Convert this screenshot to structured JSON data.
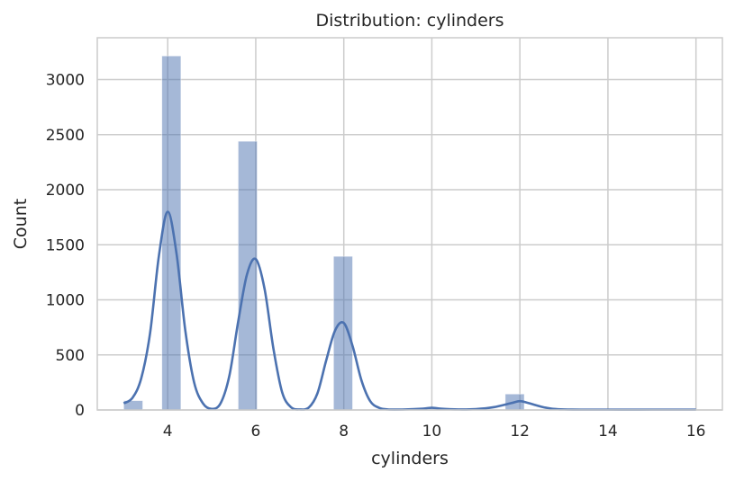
{
  "chart_data": {
    "type": "bar",
    "title": "Distribution: cylinders",
    "xlabel": "cylinders",
    "ylabel": "Count",
    "xlim": [
      2.4,
      16.6
    ],
    "ylim": [
      0,
      3380
    ],
    "x_ticks": [
      4,
      6,
      8,
      10,
      12,
      14,
      16
    ],
    "y_ticks": [
      0,
      500,
      1000,
      1500,
      2000,
      2500,
      3000
    ],
    "grid": true,
    "bar_color": "#4c72b0",
    "bar_alpha": 0.5,
    "kde_color": "#4c72b0",
    "histogram": {
      "bin_edges": [
        3.0,
        3.433,
        3.867,
        4.3,
        4.733,
        5.167,
        5.6,
        6.033,
        6.467,
        6.9,
        7.333,
        7.767,
        8.2,
        8.633,
        9.067,
        9.5,
        9.933,
        10.367,
        10.8,
        11.233,
        11.667,
        12.1,
        12.533,
        12.967,
        13.4,
        13.833,
        14.267,
        14.7,
        15.133,
        15.567,
        16.0
      ],
      "counts": [
        85,
        0,
        3215,
        0,
        0,
        0,
        2440,
        0,
        0,
        0,
        0,
        1395,
        0,
        0,
        0,
        0,
        10,
        0,
        0,
        0,
        145,
        0,
        0,
        0,
        0,
        0,
        0,
        0,
        0,
        2
      ]
    },
    "kde": {
      "x": [
        3.0,
        3.2,
        3.4,
        3.6,
        3.8,
        4.0,
        4.2,
        4.4,
        4.6,
        4.8,
        5.0,
        5.2,
        5.4,
        5.6,
        5.8,
        6.0,
        6.2,
        6.4,
        6.6,
        6.8,
        7.0,
        7.2,
        7.4,
        7.6,
        7.8,
        8.0,
        8.2,
        8.4,
        8.6,
        8.8,
        9.0,
        9.4,
        9.8,
        10.0,
        10.2,
        10.6,
        11.0,
        11.4,
        11.8,
        12.0,
        12.2,
        12.6,
        13.0,
        14.0,
        15.0,
        16.0
      ],
      "y": [
        60,
        110,
        290,
        700,
        1400,
        1800,
        1420,
        720,
        250,
        60,
        10,
        60,
        310,
        800,
        1230,
        1370,
        1100,
        560,
        160,
        25,
        5,
        20,
        150,
        450,
        720,
        790,
        580,
        270,
        80,
        20,
        5,
        5,
        12,
        20,
        12,
        5,
        8,
        25,
        62,
        80,
        62,
        20,
        5,
        3,
        3,
        3
      ]
    }
  }
}
